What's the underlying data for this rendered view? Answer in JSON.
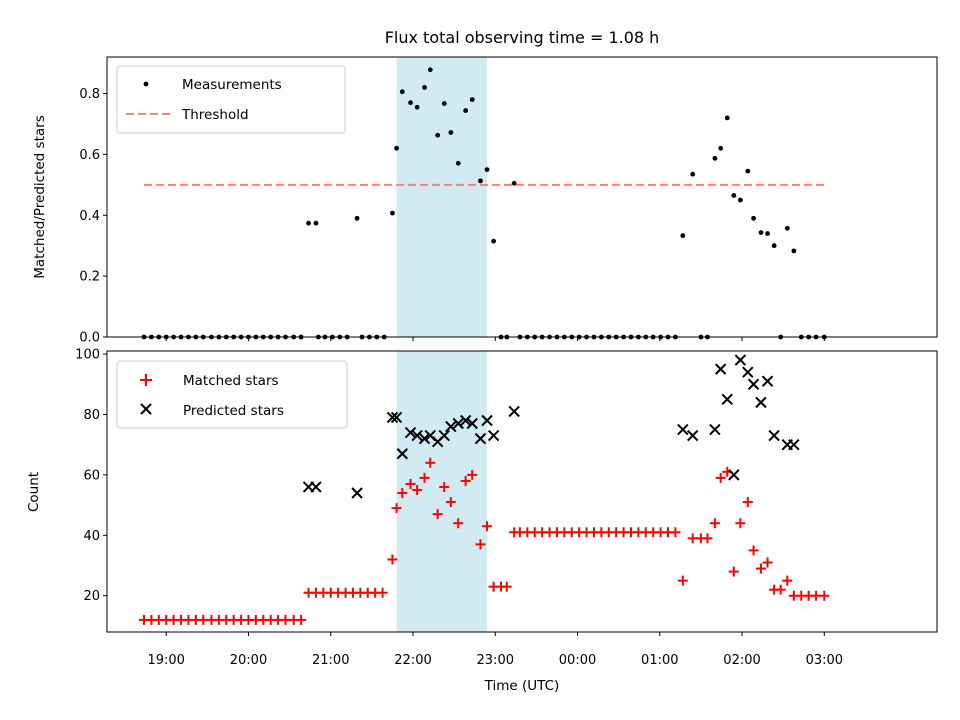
{
  "chart_data": {
    "title": "Flux total observing time = 1.08 h",
    "xlabel": "Time (UTC)",
    "x_tick_labels": [
      "19:00",
      "20:00",
      "21:00",
      "22:00",
      "23:00",
      "00:00",
      "01:00",
      "02:00",
      "03:00"
    ],
    "x_tick_hours": [
      19,
      20,
      21,
      22,
      23,
      24,
      25,
      26,
      27
    ],
    "xlim_hours": [
      18.28,
      28.37
    ],
    "highlight_span_hours": [
      21.8,
      22.9
    ],
    "colors": {
      "highlight": "#add8e6",
      "threshold": "#ff7f7f",
      "matched": "#ff0000",
      "predicted": "#000000",
      "measurement": "#000000"
    },
    "panels": [
      {
        "type": "scatter",
        "ylabel": "Matched/Predicted stars",
        "ylim": [
          0,
          0.92
        ],
        "y_ticks": [
          0,
          0.2,
          0.4,
          0.6,
          0.8
        ],
        "y_tick_labels": [
          "0.0",
          "0.2",
          "0.4",
          "0.6",
          "0.8"
        ],
        "legend_position": "top-left",
        "threshold": {
          "name": "Threshold",
          "value": 0.5,
          "x_range_hours": [
            18.73,
            27.0
          ]
        },
        "series": [
          {
            "name": "Measurements",
            "points": [
              [
                18.73,
                0
              ],
              [
                18.82,
                0
              ],
              [
                18.91,
                0
              ],
              [
                19.0,
                0
              ],
              [
                19.09,
                0
              ],
              [
                19.18,
                0
              ],
              [
                19.27,
                0
              ],
              [
                19.36,
                0
              ],
              [
                19.45,
                0
              ],
              [
                19.55,
                0
              ],
              [
                19.64,
                0
              ],
              [
                19.73,
                0
              ],
              [
                19.82,
                0
              ],
              [
                19.91,
                0
              ],
              [
                20.0,
                0
              ],
              [
                20.09,
                0
              ],
              [
                20.18,
                0
              ],
              [
                20.27,
                0
              ],
              [
                20.36,
                0
              ],
              [
                20.45,
                0
              ],
              [
                20.55,
                0
              ],
              [
                20.64,
                0
              ],
              [
                20.73,
                0.374
              ],
              [
                20.82,
                0.374
              ],
              [
                20.85,
                0
              ],
              [
                20.93,
                0
              ],
              [
                21.02,
                0
              ],
              [
                21.11,
                0
              ],
              [
                21.2,
                0
              ],
              [
                21.32,
                0.39
              ],
              [
                21.38,
                0
              ],
              [
                21.47,
                0
              ],
              [
                21.56,
                0
              ],
              [
                21.65,
                0
              ],
              [
                21.75,
                0.407
              ],
              [
                21.8,
                0.62
              ],
              [
                21.87,
                0.806
              ],
              [
                21.97,
                0.77
              ],
              [
                22.05,
                0.755
              ],
              [
                22.14,
                0.82
              ],
              [
                22.21,
                0.878
              ],
              [
                22.3,
                0.663
              ],
              [
                22.38,
                0.767
              ],
              [
                22.46,
                0.672
              ],
              [
                22.55,
                0.571
              ],
              [
                22.64,
                0.744
              ],
              [
                22.72,
                0.78
              ],
              [
                22.82,
                0.513
              ],
              [
                22.9,
                0.55
              ],
              [
                22.98,
                0.315
              ],
              [
                23.07,
                0
              ],
              [
                23.14,
                0
              ],
              [
                23.23,
                0.505
              ],
              [
                23.3,
                0
              ],
              [
                23.39,
                0
              ],
              [
                23.48,
                0
              ],
              [
                23.57,
                0
              ],
              [
                23.66,
                0
              ],
              [
                23.75,
                0
              ],
              [
                23.84,
                0
              ],
              [
                23.93,
                0
              ],
              [
                24.02,
                0
              ],
              [
                24.11,
                0
              ],
              [
                24.2,
                0
              ],
              [
                24.29,
                0
              ],
              [
                24.38,
                0
              ],
              [
                24.47,
                0
              ],
              [
                24.56,
                0
              ],
              [
                24.65,
                0
              ],
              [
                24.74,
                0
              ],
              [
                24.83,
                0
              ],
              [
                24.92,
                0
              ],
              [
                25.01,
                0
              ],
              [
                25.1,
                0
              ],
              [
                25.19,
                0
              ],
              [
                25.28,
                0.333
              ],
              [
                25.4,
                0.535
              ],
              [
                25.5,
                0
              ],
              [
                25.58,
                0
              ],
              [
                25.67,
                0.587
              ],
              [
                25.74,
                0.62
              ],
              [
                25.82,
                0.72
              ],
              [
                25.9,
                0.465
              ],
              [
                25.98,
                0.45
              ],
              [
                26.07,
                0.545
              ],
              [
                26.14,
                0.39
              ],
              [
                26.23,
                0.343
              ],
              [
                26.31,
                0.34
              ],
              [
                26.39,
                0.3
              ],
              [
                26.47,
                0
              ],
              [
                26.55,
                0.357
              ],
              [
                26.63,
                0.283
              ],
              [
                26.72,
                0
              ],
              [
                26.81,
                0
              ],
              [
                26.9,
                0
              ],
              [
                27.0,
                0
              ]
            ]
          }
        ]
      },
      {
        "type": "scatter",
        "ylabel": "Count",
        "ylim": [
          8,
          101
        ],
        "y_ticks": [
          20,
          40,
          60,
          80,
          100
        ],
        "y_tick_labels": [
          "20",
          "40",
          "60",
          "80",
          "100"
        ],
        "legend_position": "top-left",
        "series": [
          {
            "name": "Matched stars",
            "marker": "plus",
            "points": [
              [
                18.73,
                12
              ],
              [
                18.82,
                12
              ],
              [
                18.91,
                12
              ],
              [
                19.0,
                12
              ],
              [
                19.09,
                12
              ],
              [
                19.18,
                12
              ],
              [
                19.27,
                12
              ],
              [
                19.36,
                12
              ],
              [
                19.45,
                12
              ],
              [
                19.55,
                12
              ],
              [
                19.64,
                12
              ],
              [
                19.73,
                12
              ],
              [
                19.82,
                12
              ],
              [
                19.91,
                12
              ],
              [
                20.0,
                12
              ],
              [
                20.09,
                12
              ],
              [
                20.18,
                12
              ],
              [
                20.27,
                12
              ],
              [
                20.36,
                12
              ],
              [
                20.45,
                12
              ],
              [
                20.55,
                12
              ],
              [
                20.64,
                12
              ],
              [
                20.73,
                21
              ],
              [
                20.82,
                21
              ],
              [
                20.91,
                21
              ],
              [
                21.0,
                21
              ],
              [
                21.09,
                21
              ],
              [
                21.18,
                21
              ],
              [
                21.27,
                21
              ],
              [
                21.36,
                21
              ],
              [
                21.45,
                21
              ],
              [
                21.54,
                21
              ],
              [
                21.63,
                21
              ],
              [
                21.75,
                32
              ],
              [
                21.8,
                49
              ],
              [
                21.87,
                54
              ],
              [
                21.97,
                57
              ],
              [
                22.05,
                55
              ],
              [
                22.14,
                59
              ],
              [
                22.21,
                64
              ],
              [
                22.3,
                47
              ],
              [
                22.38,
                56
              ],
              [
                22.46,
                51
              ],
              [
                22.55,
                44
              ],
              [
                22.64,
                58
              ],
              [
                22.72,
                60
              ],
              [
                22.82,
                37
              ],
              [
                22.9,
                43
              ],
              [
                22.98,
                23
              ],
              [
                23.07,
                23
              ],
              [
                23.14,
                23
              ],
              [
                23.23,
                41
              ],
              [
                23.3,
                41
              ],
              [
                23.39,
                41
              ],
              [
                23.48,
                41
              ],
              [
                23.57,
                41
              ],
              [
                23.66,
                41
              ],
              [
                23.75,
                41
              ],
              [
                23.84,
                41
              ],
              [
                23.93,
                41
              ],
              [
                24.02,
                41
              ],
              [
                24.11,
                41
              ],
              [
                24.2,
                41
              ],
              [
                24.29,
                41
              ],
              [
                24.38,
                41
              ],
              [
                24.47,
                41
              ],
              [
                24.56,
                41
              ],
              [
                24.65,
                41
              ],
              [
                24.74,
                41
              ],
              [
                24.83,
                41
              ],
              [
                24.92,
                41
              ],
              [
                25.01,
                41
              ],
              [
                25.1,
                41
              ],
              [
                25.19,
                41
              ],
              [
                25.28,
                25
              ],
              [
                25.4,
                39
              ],
              [
                25.5,
                39
              ],
              [
                25.58,
                39
              ],
              [
                25.67,
                44
              ],
              [
                25.74,
                59
              ],
              [
                25.82,
                61
              ],
              [
                25.9,
                28
              ],
              [
                25.98,
                44
              ],
              [
                26.07,
                51
              ],
              [
                26.14,
                35
              ],
              [
                26.23,
                29
              ],
              [
                26.31,
                31
              ],
              [
                26.39,
                22
              ],
              [
                26.47,
                22
              ],
              [
                26.55,
                25
              ],
              [
                26.63,
                20
              ],
              [
                26.72,
                20
              ],
              [
                26.81,
                20
              ],
              [
                26.9,
                20
              ],
              [
                27.0,
                20
              ]
            ]
          },
          {
            "name": "Predicted stars",
            "marker": "x",
            "points": [
              [
                20.73,
                56
              ],
              [
                20.82,
                56
              ],
              [
                21.32,
                54
              ],
              [
                21.75,
                79
              ],
              [
                21.8,
                79
              ],
              [
                21.87,
                67
              ],
              [
                21.97,
                74
              ],
              [
                22.05,
                73
              ],
              [
                22.14,
                72
              ],
              [
                22.21,
                73
              ],
              [
                22.3,
                71
              ],
              [
                22.38,
                73
              ],
              [
                22.46,
                76
              ],
              [
                22.55,
                77
              ],
              [
                22.64,
                78
              ],
              [
                22.72,
                77
              ],
              [
                22.82,
                72
              ],
              [
                22.9,
                78
              ],
              [
                22.98,
                73
              ],
              [
                23.23,
                81
              ],
              [
                25.28,
                75
              ],
              [
                25.4,
                73
              ],
              [
                25.67,
                75
              ],
              [
                25.74,
                95
              ],
              [
                25.82,
                85
              ],
              [
                25.9,
                60
              ],
              [
                25.98,
                98
              ],
              [
                26.07,
                94
              ],
              [
                26.14,
                90
              ],
              [
                26.23,
                84
              ],
              [
                26.31,
                91
              ],
              [
                26.39,
                73
              ],
              [
                26.55,
                70
              ],
              [
                26.63,
                70
              ]
            ]
          }
        ]
      }
    ]
  }
}
